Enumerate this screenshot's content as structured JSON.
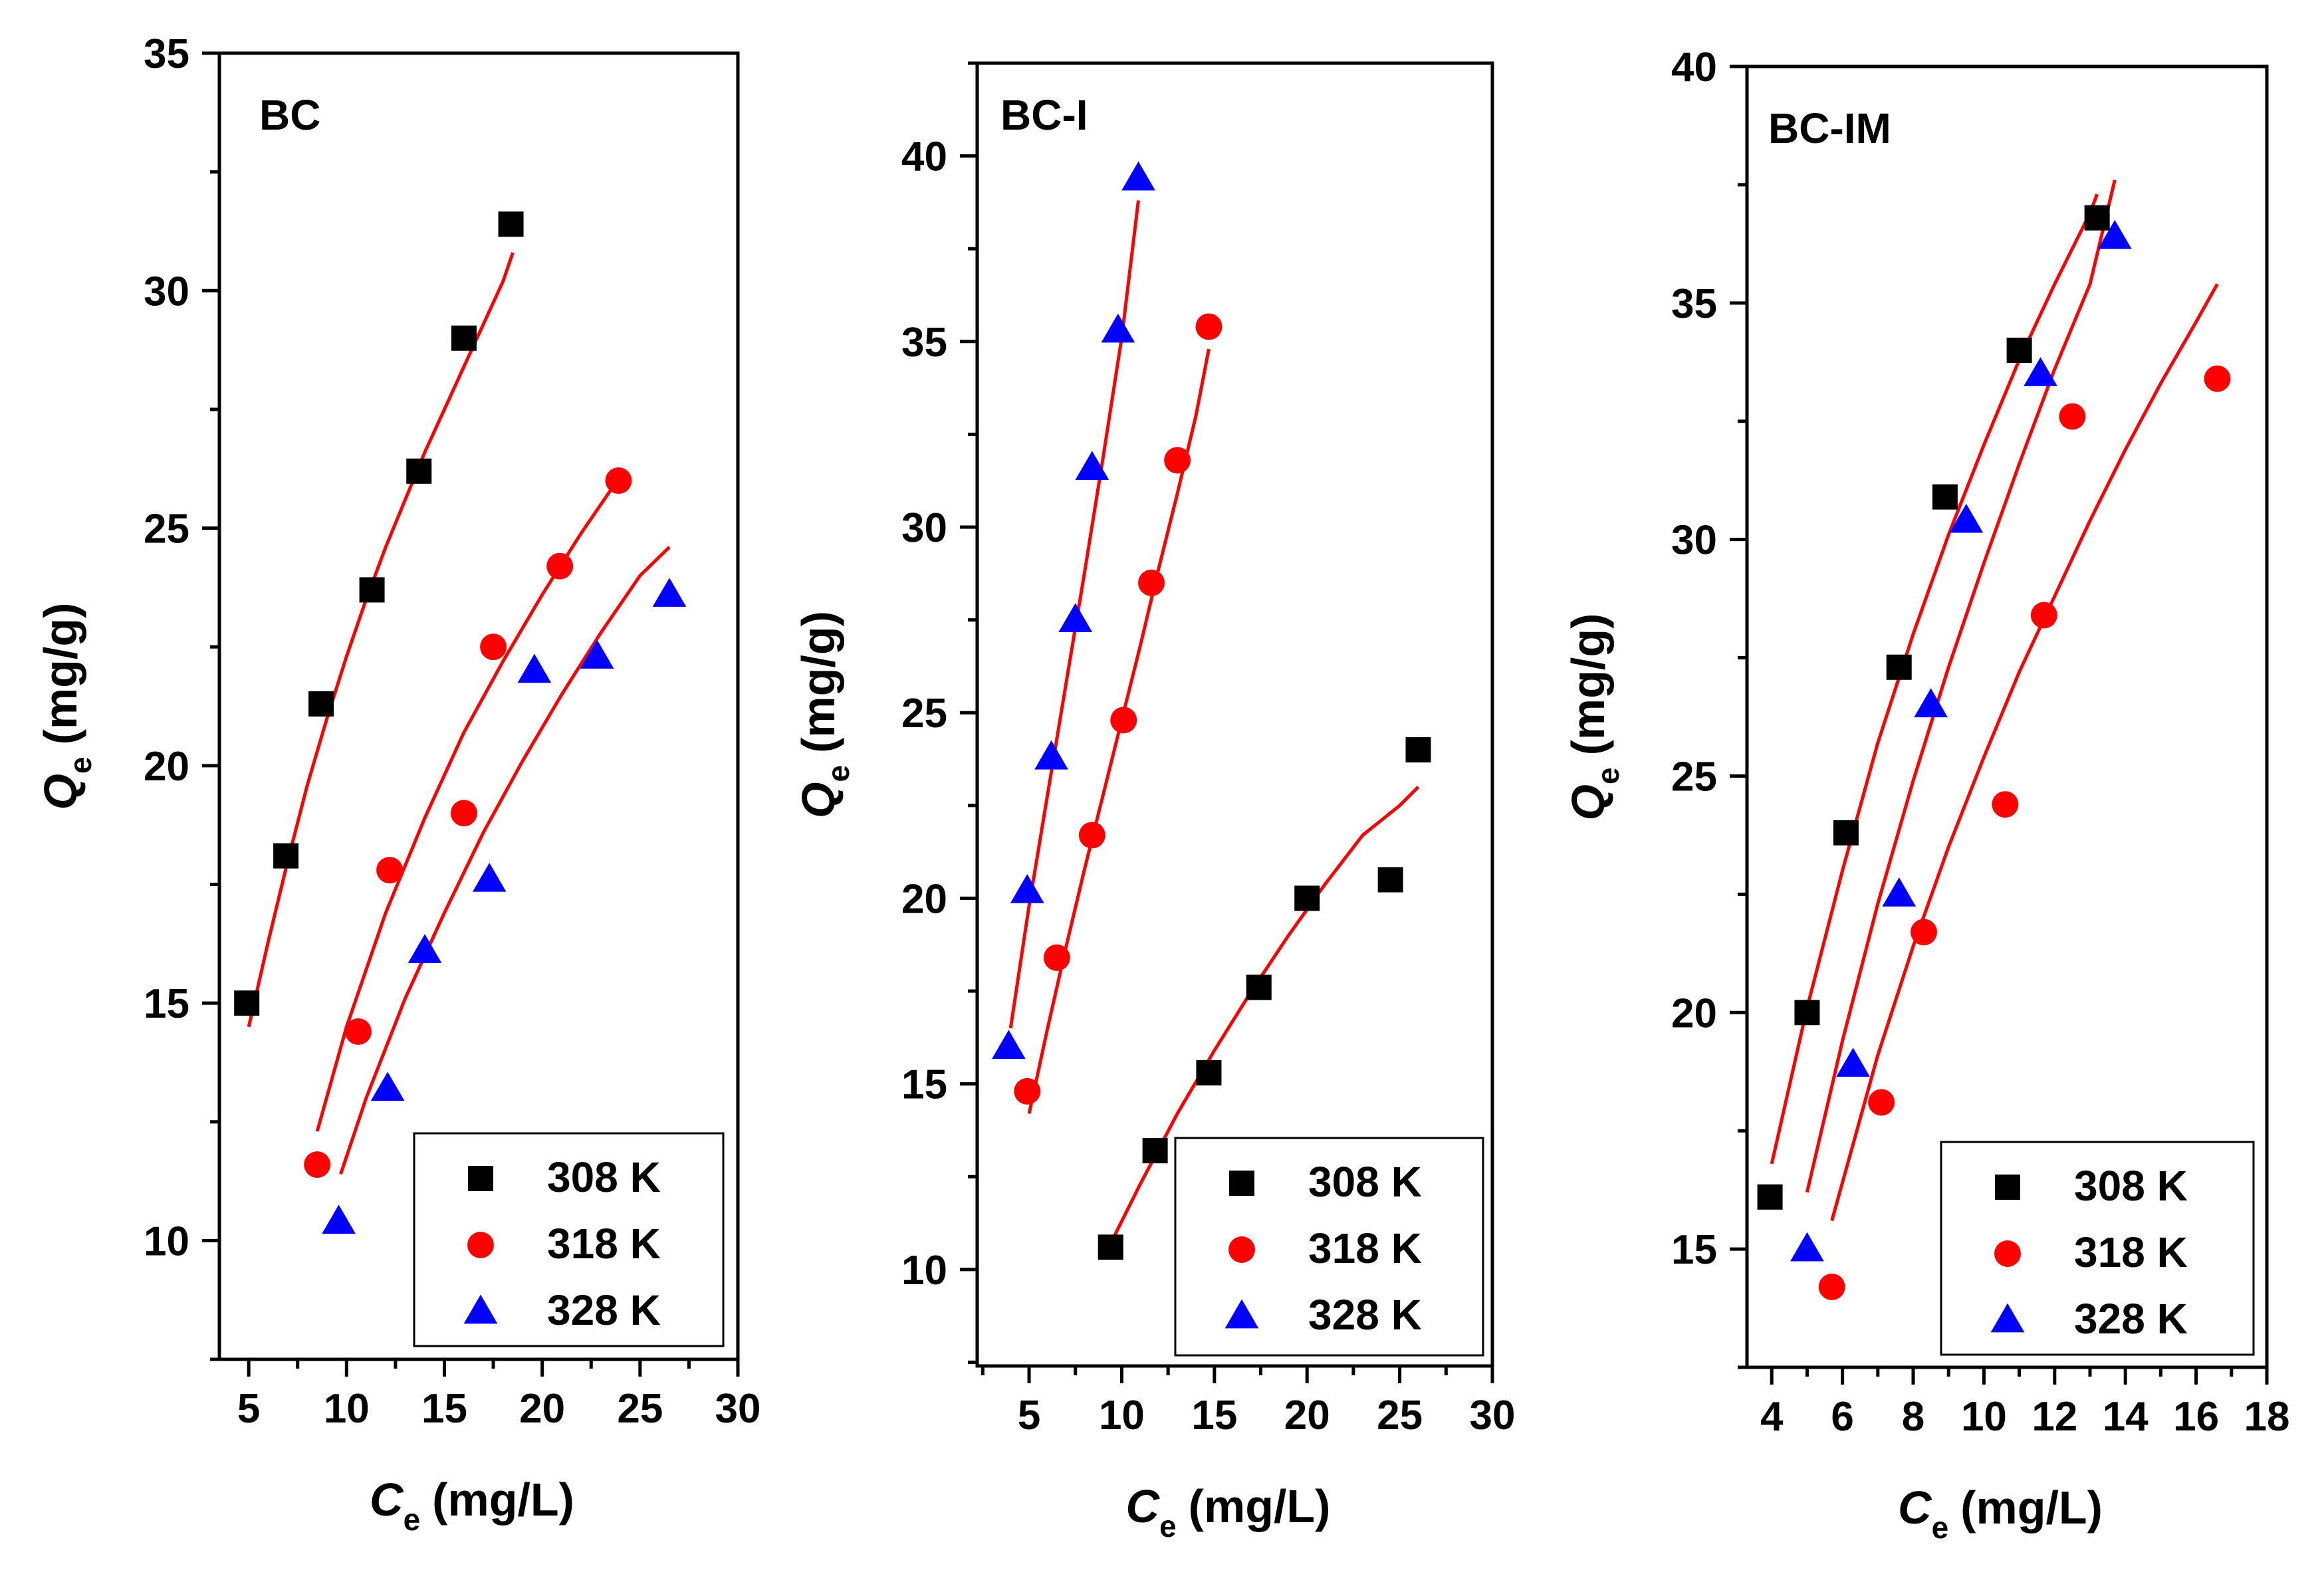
{
  "colors": {
    "series_308": "#000000",
    "series_318": "#ff0000",
    "series_328": "#0000ff",
    "fit": "#ff0000"
  },
  "chart_data": [
    {
      "type": "scatter",
      "title": "BC",
      "xlabel_main": "C",
      "xlabel_sub": "e",
      "xlabel_unit": "(mg/L)",
      "ylabel_main": "Q",
      "ylabel_sub": "e",
      "ylabel_unit": "(mg/g)",
      "xlim": [
        3.5,
        30
      ],
      "ylim": [
        7.5,
        35
      ],
      "xticks": [
        5,
        10,
        15,
        20,
        25,
        30
      ],
      "yticks": [
        10,
        15,
        20,
        25,
        30,
        35
      ],
      "legend_position": "bottom-right",
      "series": [
        {
          "name": "308 K",
          "marker": "square",
          "x": [
            4.9,
            6.9,
            8.7,
            11.3,
            13.7,
            16.0,
            18.4
          ],
          "y": [
            15.0,
            18.1,
            21.3,
            23.7,
            26.2,
            29.0,
            31.4
          ],
          "fit": {
            "x": [
              5.0,
              6.0,
              7.0,
              8.0,
              9.0,
              10.0,
              11.0,
              12.0,
              13.0,
              14.0,
              15.0,
              16.0,
              17.0,
              18.0,
              18.5
            ],
            "y": [
              14.5,
              16.3,
              18.0,
              19.6,
              21.0,
              22.3,
              23.5,
              24.6,
              25.6,
              26.6,
              27.5,
              28.4,
              29.3,
              30.2,
              30.8
            ]
          }
        },
        {
          "name": "318 K",
          "marker": "circle",
          "x": [
            8.5,
            10.6,
            12.2,
            16.0,
            17.5,
            20.9,
            23.9
          ],
          "y": [
            11.6,
            14.4,
            17.8,
            19.0,
            22.5,
            24.2,
            26.0
          ],
          "fit": {
            "x": [
              8.5,
              10.0,
              12.0,
              14.0,
              16.0,
              18.0,
              20.0,
              22.0,
              24.0
            ],
            "y": [
              12.3,
              14.5,
              16.9,
              18.9,
              20.7,
              22.2,
              23.6,
              24.9,
              26.1
            ]
          }
        },
        {
          "name": "328 K",
          "marker": "triangle",
          "x": [
            9.6,
            12.1,
            14.0,
            17.3,
            19.6,
            22.8,
            26.5
          ],
          "y": [
            10.4,
            13.2,
            16.1,
            17.6,
            22.0,
            22.3,
            23.6
          ],
          "fit": {
            "x": [
              9.7,
              11.0,
              13.0,
              15.0,
              17.0,
              19.0,
              21.0,
              23.0,
              25.0,
              26.5
            ],
            "y": [
              11.4,
              13.0,
              15.1,
              16.9,
              18.6,
              20.1,
              21.5,
              22.8,
              24.0,
              24.6
            ]
          }
        }
      ]
    },
    {
      "type": "scatter",
      "title": "BC-I",
      "xlabel_main": "C",
      "xlabel_sub": "e",
      "xlabel_unit": "(mg/L)",
      "ylabel_main": "Q",
      "ylabel_sub": "e",
      "ylabel_unit": "(mg/g)",
      "xlim": [
        2.2,
        30
      ],
      "ylim": [
        7.4,
        42.5
      ],
      "xticks": [
        5,
        10,
        15,
        20,
        25,
        30
      ],
      "yticks": [
        10,
        15,
        20,
        25,
        30,
        35,
        40
      ],
      "legend_position": "bottom-right",
      "series": [
        {
          "name": "308 K",
          "marker": "square",
          "x": [
            9.4,
            11.8,
            14.7,
            17.4,
            20.0,
            24.5,
            26.0
          ],
          "y": [
            10.6,
            13.2,
            15.3,
            17.6,
            20.0,
            20.5,
            24.0
          ],
          "fit": {
            "x": [
              9.4,
              11.0,
              13.0,
              15.0,
              17.0,
              19.0,
              21.0,
              23.0,
              25.0,
              26.0
            ],
            "y": [
              10.7,
              12.3,
              14.2,
              15.9,
              17.5,
              19.0,
              20.4,
              21.7,
              22.5,
              23.0
            ]
          }
        },
        {
          "name": "318 K",
          "marker": "circle",
          "x": [
            4.9,
            6.5,
            8.4,
            10.1,
            11.6,
            13.0,
            14.7
          ],
          "y": [
            14.8,
            18.4,
            21.7,
            24.8,
            28.5,
            31.8,
            35.4
          ],
          "fit": {
            "x": [
              5.0,
              6.0,
              7.0,
              8.0,
              9.0,
              10.0,
              11.0,
              12.0,
              13.0,
              14.0,
              14.7
            ],
            "y": [
              14.2,
              16.5,
              18.7,
              20.8,
              22.8,
              24.8,
              26.8,
              28.9,
              30.9,
              33.0,
              34.8
            ]
          }
        },
        {
          "name": "328 K",
          "marker": "triangle",
          "x": [
            3.9,
            4.9,
            6.2,
            7.5,
            8.4,
            9.8,
            10.9
          ],
          "y": [
            16.0,
            20.2,
            23.8,
            27.5,
            31.6,
            35.3,
            39.4
          ],
          "fit": {
            "x": [
              4.0,
              5.0,
              6.0,
              7.0,
              8.0,
              9.0,
              10.0,
              10.9
            ],
            "y": [
              16.5,
              19.8,
              22.8,
              25.8,
              28.8,
              31.9,
              35.1,
              38.8
            ]
          }
        }
      ]
    },
    {
      "type": "scatter",
      "title": "BC-IM",
      "xlabel_main": "C",
      "xlabel_sub": "e",
      "xlabel_unit": "(mg/L)",
      "ylabel_main": "Q",
      "ylabel_sub": "e",
      "ylabel_unit": "(mg/g)",
      "xlim": [
        3.3,
        18
      ],
      "ylim": [
        12.5,
        40
      ],
      "xticks": [
        4,
        6,
        8,
        10,
        12,
        14,
        16,
        18
      ],
      "yticks": [
        15,
        20,
        25,
        30,
        35,
        40
      ],
      "legend_position": "bottom-right",
      "series": [
        {
          "name": "308 K",
          "marker": "square",
          "x": [
            3.95,
            5.0,
            6.1,
            7.6,
            8.9,
            11.0,
            13.2
          ],
          "y": [
            16.1,
            20.0,
            23.8,
            27.3,
            30.9,
            34.0,
            36.8
          ],
          "fit": {
            "x": [
              4.0,
              5.0,
              6.0,
              7.0,
              8.0,
              9.0,
              10.0,
              11.0,
              12.0,
              13.0,
              13.2
            ],
            "y": [
              16.8,
              20.1,
              23.0,
              25.7,
              28.0,
              30.1,
              32.0,
              33.8,
              35.4,
              36.9,
              37.3
            ]
          }
        },
        {
          "name": "318 K",
          "marker": "circle",
          "x": [
            5.7,
            7.1,
            8.3,
            10.6,
            11.7,
            12.5,
            16.6
          ],
          "y": [
            14.2,
            18.1,
            21.7,
            24.4,
            28.4,
            32.6,
            33.4
          ],
          "fit": {
            "x": [
              5.7,
              7.0,
              8.0,
              9.0,
              10.0,
              11.0,
              12.0,
              13.0,
              14.0,
              15.0,
              16.0,
              16.6
            ],
            "y": [
              15.6,
              19.1,
              21.4,
              23.5,
              25.4,
              27.2,
              28.8,
              30.4,
              31.9,
              33.3,
              34.6,
              35.4
            ]
          }
        },
        {
          "name": "328 K",
          "marker": "triangle",
          "x": [
            5.0,
            6.3,
            7.6,
            8.5,
            9.5,
            11.6,
            13.7
          ],
          "y": [
            15.0,
            18.9,
            22.5,
            26.5,
            30.4,
            33.5,
            36.4
          ],
          "fit": {
            "x": [
              5.0,
              6.0,
              7.0,
              8.0,
              9.0,
              10.0,
              11.0,
              12.0,
              13.0,
              13.7
            ],
            "y": [
              16.2,
              19.4,
              22.3,
              24.9,
              27.3,
              29.5,
              31.6,
              33.6,
              35.4,
              37.6
            ]
          }
        }
      ]
    }
  ]
}
